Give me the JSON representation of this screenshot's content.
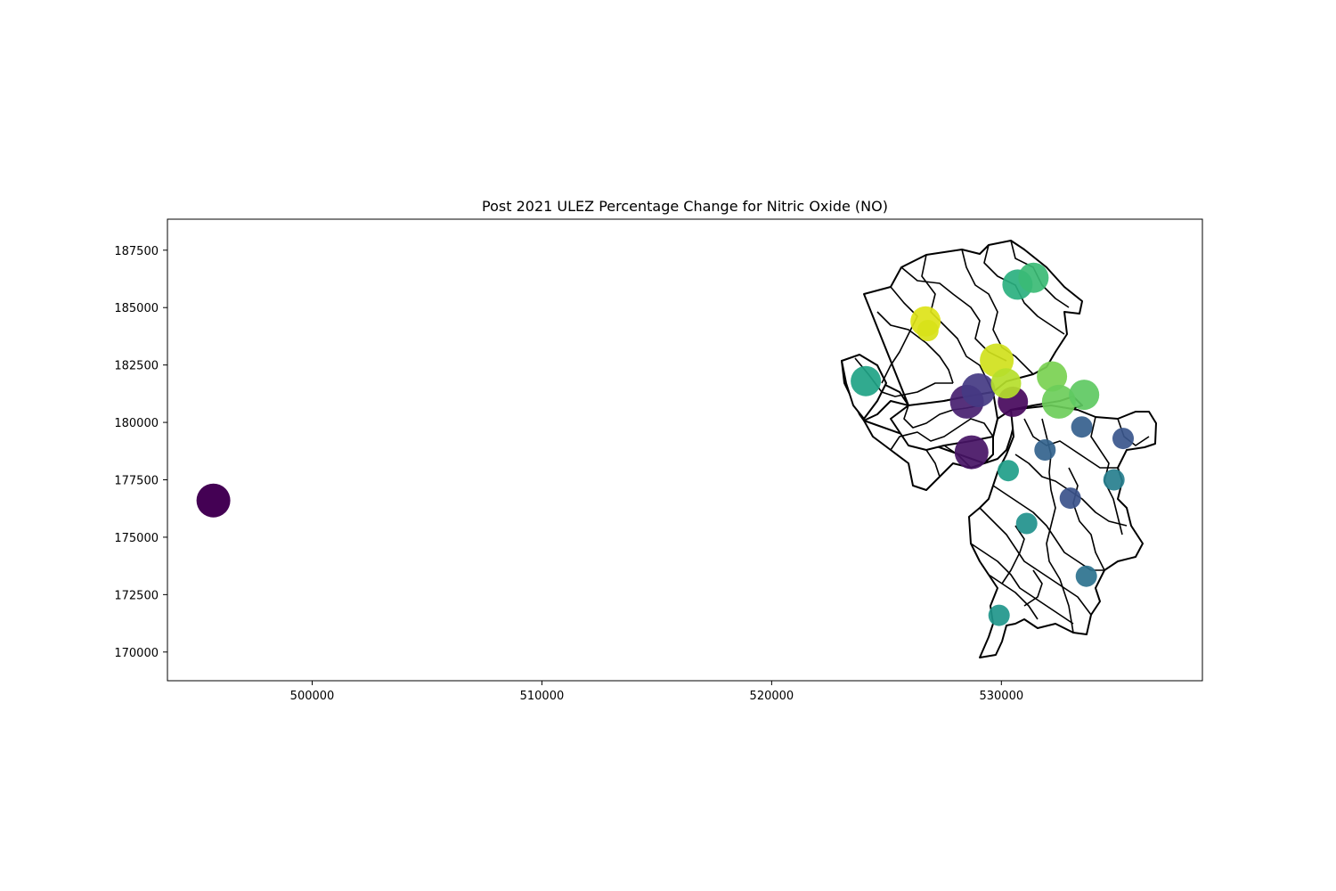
{
  "chart_data": {
    "type": "scatter",
    "title": "Post 2021 ULEZ Percentage Change for Nitric Oxide (NO)",
    "xlabel": "",
    "ylabel": "",
    "xlim": [
      493700,
      538750
    ],
    "ylim": [
      168750,
      188850
    ],
    "x_ticks": [
      500000,
      510000,
      520000,
      530000
    ],
    "x_tick_labels": [
      "500000",
      "510000",
      "520000",
      "530000"
    ],
    "y_ticks": [
      170000,
      172500,
      175000,
      177500,
      180000,
      182500,
      185000,
      187500
    ],
    "y_tick_labels": [
      "170000",
      "172500",
      "175000",
      "177500",
      "180000",
      "182500",
      "185000",
      "187500"
    ],
    "grid": false,
    "legend": "none",
    "colormap": "viridis",
    "basemap": "London ward boundaries (black outlines, white fill)",
    "points": [
      {
        "x": 495700,
        "y": 176600,
        "color": "#440154",
        "size": "large"
      },
      {
        "x": 528500,
        "y": 180900,
        "color": "#481f70",
        "size": "large"
      },
      {
        "x": 529000,
        "y": 181400,
        "color": "#443983",
        "size": "large"
      },
      {
        "x": 530500,
        "y": 180900,
        "color": "#46085c",
        "size": "medium"
      },
      {
        "x": 528700,
        "y": 178700,
        "color": "#471365",
        "size": "large"
      },
      {
        "x": 524100,
        "y": 181800,
        "color": "#20a386",
        "size": "medium"
      },
      {
        "x": 526700,
        "y": 184400,
        "color": "#dde318",
        "size": "medium"
      },
      {
        "x": 526800,
        "y": 184000,
        "color": "#d8e219",
        "size": "small"
      },
      {
        "x": 529800,
        "y": 182700,
        "color": "#d0e11c",
        "size": "large"
      },
      {
        "x": 530200,
        "y": 181700,
        "color": "#b5de2b",
        "size": "medium"
      },
      {
        "x": 530700,
        "y": 186000,
        "color": "#2ab07f",
        "size": "medium"
      },
      {
        "x": 531400,
        "y": 186300,
        "color": "#3bbb75",
        "size": "medium"
      },
      {
        "x": 532200,
        "y": 182000,
        "color": "#7ad151",
        "size": "medium"
      },
      {
        "x": 532500,
        "y": 180900,
        "color": "#6ccd5a",
        "size": "large"
      },
      {
        "x": 533600,
        "y": 181200,
        "color": "#5ec962",
        "size": "medium"
      },
      {
        "x": 533500,
        "y": 179800,
        "color": "#355f8d",
        "size": "small"
      },
      {
        "x": 535300,
        "y": 179300,
        "color": "#39568c",
        "size": "small"
      },
      {
        "x": 531900,
        "y": 178800,
        "color": "#33638d",
        "size": "small"
      },
      {
        "x": 530300,
        "y": 177900,
        "color": "#1f9e89",
        "size": "small"
      },
      {
        "x": 534900,
        "y": 177500,
        "color": "#277f8e",
        "size": "small"
      },
      {
        "x": 533000,
        "y": 176700,
        "color": "#3b528b",
        "size": "small"
      },
      {
        "x": 531100,
        "y": 175600,
        "color": "#21918c",
        "size": "small"
      },
      {
        "x": 533700,
        "y": 173300,
        "color": "#2c728e",
        "size": "small"
      },
      {
        "x": 529900,
        "y": 171600,
        "color": "#1f968b",
        "size": "small"
      }
    ]
  }
}
